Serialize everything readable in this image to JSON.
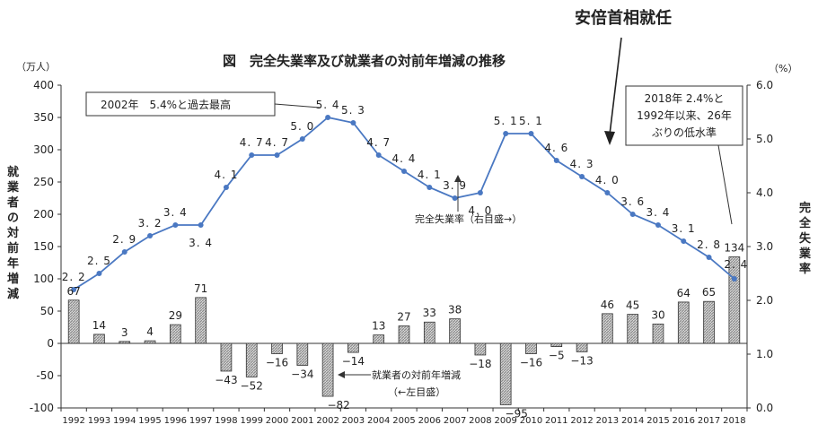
{
  "chart_data": {
    "type": "bar+line",
    "title": "図　完全失業率及び就業者の対前年増減の推移",
    "headline": "安倍首相就任",
    "left_axis": {
      "unit": "（万人）",
      "label": "就業者の対前年増減",
      "min": -100,
      "max": 400,
      "ticks": [
        400,
        350,
        300,
        250,
        200,
        150,
        100,
        50,
        0,
        -50,
        -100
      ]
    },
    "right_axis": {
      "unit": "（%）",
      "label": "完全失業率",
      "min": 0.0,
      "max": 6.0,
      "ticks": [
        "6.0",
        "5.0",
        "4.0",
        "3.0",
        "2.0",
        "1.0",
        "0.0"
      ]
    },
    "years": [
      "1992",
      "1993",
      "1994",
      "1995",
      "1996",
      "1997",
      "1998",
      "1999",
      "2000",
      "2001",
      "2002",
      "2003",
      "2004",
      "2005",
      "2006",
      "2007",
      "2008",
      "2009",
      "2010",
      "2011",
      "2012",
      "2013",
      "2014",
      "2015",
      "2016",
      "2017",
      "2018"
    ],
    "series": [
      {
        "name": "就業者の対前年増減",
        "legend_lines": [
          "就業者の対前年増減",
          "（←左目盛）"
        ],
        "kind": "bar",
        "axis": "left",
        "values": [
          67,
          14,
          3,
          4,
          29,
          71,
          -43,
          -52,
          -16,
          -34,
          -82,
          -14,
          13,
          27,
          33,
          38,
          -18,
          -95,
          -16,
          -5,
          -13,
          46,
          45,
          30,
          64,
          65,
          134
        ]
      },
      {
        "name": "完全失業率",
        "legend": "完全失業率（右目盛→）",
        "kind": "line",
        "axis": "right",
        "values": [
          2.2,
          2.5,
          2.9,
          3.2,
          3.4,
          3.4,
          4.1,
          4.7,
          4.7,
          5.0,
          5.4,
          5.3,
          4.7,
          4.4,
          4.1,
          3.9,
          4.0,
          5.1,
          5.1,
          4.6,
          4.3,
          4.0,
          3.6,
          3.4,
          3.1,
          2.8,
          2.4
        ],
        "labels": [
          "2.2",
          "2.5",
          "2.9",
          "3.2",
          "3.4",
          "3.4",
          "4.1",
          "4.7",
          "4.7",
          "5.0",
          "5.4",
          "5.3",
          "4.7",
          "4.4",
          "4.1",
          "3.9",
          "4.0",
          "5.1",
          "5.1",
          "4.6",
          "4.3",
          "4.0",
          "3.6",
          "3.4",
          "3.1",
          "2.8",
          "2.4"
        ]
      }
    ],
    "callouts": {
      "peak_2002": "2002年　5.4%と過去最高",
      "low_2018": [
        "2018年 2.4%と",
        "1992年以来、26年",
        "ぶりの低水準"
      ]
    },
    "colors": {
      "line": "#4a78c2",
      "bar_fill": "#8a8a8a",
      "bar_stroke": "#333333",
      "axis": "#333333"
    }
  }
}
